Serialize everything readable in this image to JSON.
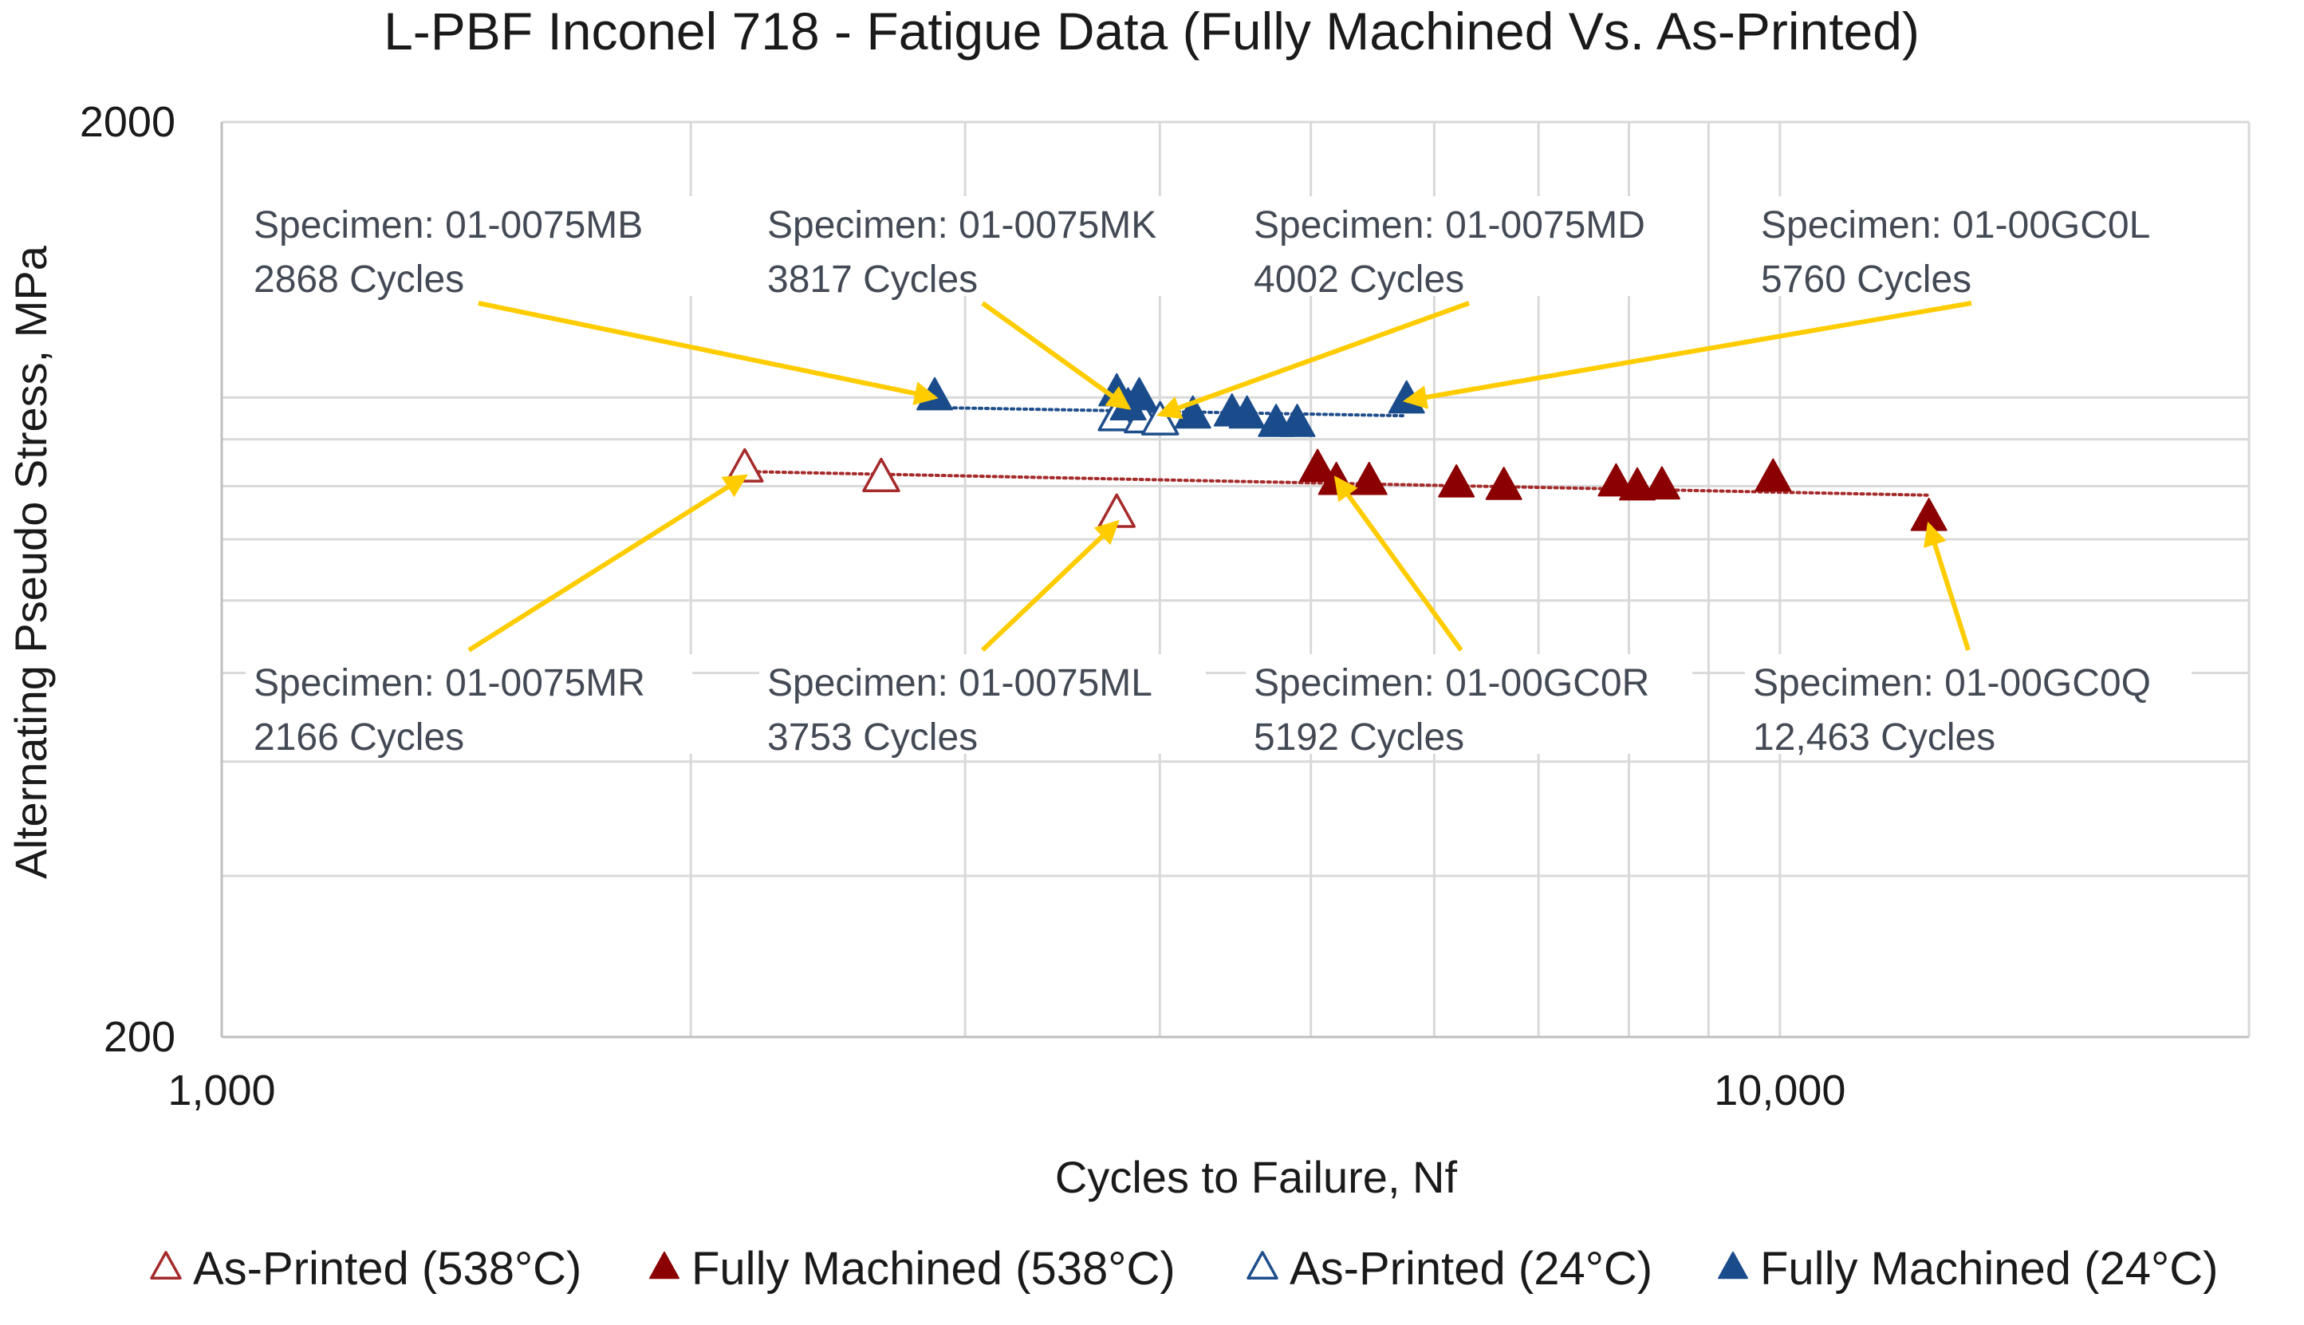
{
  "chart_data": {
    "type": "scatter",
    "title": "L-PBF Inconel 718 - Fatigue Data (Fully Machined Vs. As-Printed)",
    "xlabel": "Cycles to Failure, Nf",
    "ylabel": "Alternating Pseudo Stress, MPa",
    "x_scale": "log",
    "y_scale": "log",
    "xlim": [
      1000,
      20000
    ],
    "ylim": [
      200,
      2000
    ],
    "x_tick_labels": [
      "1,000",
      "10,000"
    ],
    "y_tick_labels": [
      "200",
      "2000"
    ],
    "grid": true,
    "legend_position": "bottom",
    "series": [
      {
        "name": "As-Printed (538°C)",
        "marker": "triangle-open",
        "color": "#A52A2A",
        "points": [
          [
            2166,
            835
          ],
          [
            2650,
            815
          ],
          [
            3753,
            745
          ]
        ]
      },
      {
        "name": "Fully Machined (538°C)",
        "marker": "triangle-filled",
        "color": "#8B0000",
        "points": [
          [
            5050,
            835
          ],
          [
            5192,
            808
          ],
          [
            5450,
            808
          ],
          [
            6200,
            803
          ],
          [
            6650,
            798
          ],
          [
            7850,
            805
          ],
          [
            8100,
            797
          ],
          [
            8400,
            799
          ],
          [
            9900,
            815
          ],
          [
            12463,
            738
          ]
        ]
      },
      {
        "name": "As-Printed (24°C)",
        "marker": "triangle-open",
        "color": "#1F4E8C",
        "points": [
          [
            3753,
            950
          ],
          [
            3900,
            945
          ],
          [
            4002,
            940
          ]
        ]
      },
      {
        "name": "Fully Machined (24°C)",
        "marker": "triangle-filled",
        "color": "#1A4C8C",
        "points": [
          [
            2868,
            1000
          ],
          [
            3753,
            1010
          ],
          [
            3817,
            975
          ],
          [
            3880,
            1000
          ],
          [
            4200,
            955
          ],
          [
            4450,
            960
          ],
          [
            4550,
            955
          ],
          [
            4750,
            935
          ],
          [
            4900,
            935
          ],
          [
            5760,
            992
          ]
        ]
      }
    ],
    "trendlines": [
      {
        "series": "Fully Machined (24°C)",
        "color": "#1F4E8C",
        "x": [
          2868,
          5760
        ],
        "y": [
          975,
          955
        ]
      },
      {
        "series": "Fully Machined (538°C)",
        "color": "#A52A2A",
        "x": [
          2166,
          12463
        ],
        "y": [
          830,
          782
        ]
      }
    ],
    "annotations": [
      {
        "line1": "Specimen: 01-0075MB",
        "line2": "2868 Cycles",
        "target": [
          2868,
          1000
        ]
      },
      {
        "line1": "Specimen: 01-0075MK",
        "line2": "3817 Cycles",
        "target": [
          3817,
          975
        ]
      },
      {
        "line1": "Specimen: 01-0075MD",
        "line2": "4002 Cycles",
        "target": [
          4002,
          958
        ]
      },
      {
        "line1": "Specimen: 01-00GC0L",
        "line2": "5760 Cycles",
        "target": [
          5760,
          992
        ]
      },
      {
        "line1": "Specimen: 01-0075MR",
        "line2": "2166 Cycles",
        "target": [
          2166,
          820
        ]
      },
      {
        "line1": "Specimen: 01-0075ML",
        "line2": "3753 Cycles",
        "target": [
          3753,
          730
        ]
      },
      {
        "line1": "Specimen: 01-00GC0R",
        "line2": "5192 Cycles",
        "target": [
          5192,
          815
        ]
      },
      {
        "line1": "Specimen: 01-00GC0Q",
        "line2": "12,463 Cycles",
        "target": [
          12463,
          725
        ]
      }
    ],
    "arrow_color": "#FFCC00"
  }
}
